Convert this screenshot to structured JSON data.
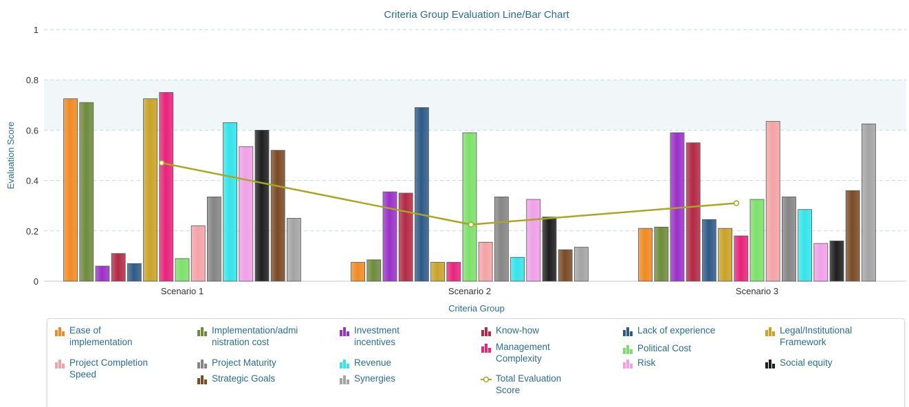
{
  "chart_data": {
    "type": "bar",
    "title": "Criteria Group Evaluation Line/Bar Chart",
    "xlabel": "Criteria Group",
    "ylabel": "Evaluation Score",
    "ylim": [
      0,
      1
    ],
    "yticks": [
      0,
      0.2,
      0.4,
      0.6,
      0.8,
      1
    ],
    "ytick_labels": [
      "0",
      "0.2",
      "0.4",
      "0.6",
      "0.8",
      "1"
    ],
    "grid": true,
    "legend_position": "bottom",
    "categories": [
      "Scenario 1",
      "Scenario 2",
      "Scenario 3"
    ],
    "series": [
      {
        "name": "Ease of implementation",
        "color": "#f08a24",
        "values": [
          0.725,
          0.075,
          0.21
        ]
      },
      {
        "name": "Implementation/administration cost",
        "color": "#6e8b3d",
        "values": [
          0.71,
          0.085,
          0.215
        ]
      },
      {
        "name": "Investment incentives",
        "color": "#9b30c8",
        "values": [
          0.06,
          0.355,
          0.59
        ]
      },
      {
        "name": "Know-how",
        "color": "#b22a44",
        "values": [
          0.11,
          0.35,
          0.55
        ]
      },
      {
        "name": "Lack of experience",
        "color": "#2e5a87",
        "values": [
          0.07,
          0.69,
          0.245
        ]
      },
      {
        "name": "Legal/Institutional Framework",
        "color": "#c9a227",
        "values": [
          0.725,
          0.075,
          0.21
        ]
      },
      {
        "name": "Management Complexity",
        "color": "#e8237c",
        "values": [
          0.75,
          0.075,
          0.18
        ]
      },
      {
        "name": "Political Cost",
        "color": "#7de06a",
        "values": [
          0.09,
          0.59,
          0.325
        ]
      },
      {
        "name": "Project Completion Speed",
        "color": "#f4a3a5",
        "values": [
          0.22,
          0.155,
          0.635
        ]
      },
      {
        "name": "Project Maturity",
        "color": "#858585",
        "values": [
          0.335,
          0.335,
          0.335
        ]
      },
      {
        "name": "Revenue",
        "color": "#33e4ea",
        "values": [
          0.63,
          0.095,
          0.285
        ]
      },
      {
        "name": "Risk",
        "color": "#f0a0e8",
        "values": [
          0.535,
          0.325,
          0.15
        ]
      },
      {
        "name": "Social equity",
        "color": "#1e1e1e",
        "values": [
          0.6,
          0.255,
          0.16
        ]
      },
      {
        "name": "Strategic Goals",
        "color": "#7a4a26",
        "values": [
          0.52,
          0.125,
          0.36
        ]
      },
      {
        "name": "Synergies",
        "color": "#a4a4a4",
        "values": [
          0.25,
          0.135,
          0.625
        ]
      }
    ],
    "line_series": {
      "name": "Total Evaluation Score",
      "color": "#a9a622",
      "values": [
        0.47,
        0.225,
        0.31
      ]
    }
  },
  "legend": {
    "items": [
      {
        "text": "Ease of\nimplementation",
        "color": "#f08a24",
        "kind": "bar"
      },
      {
        "text": "Implementation/admi\nnistration cost",
        "color": "#6e8b3d",
        "kind": "bar"
      },
      {
        "text": "Investment\nincentives",
        "color": "#9b30c8",
        "kind": "bar"
      },
      {
        "text": "Know-how",
        "color": "#b22a44",
        "kind": "bar"
      },
      {
        "text": "Lack of experience",
        "color": "#2e5a87",
        "kind": "bar"
      },
      {
        "text": "Legal/Institutional\nFramework",
        "color": "#c9a227",
        "kind": "bar"
      },
      {
        "text": "Management\nComplexity",
        "color": "#e8237c",
        "kind": "bar"
      },
      {
        "text": "Political Cost",
        "color": "#7de06a",
        "kind": "bar"
      },
      {
        "text": "Project Completion\nSpeed",
        "color": "#f4a3a5",
        "kind": "bar"
      },
      {
        "text": "Project Maturity",
        "color": "#858585",
        "kind": "bar"
      },
      {
        "text": "Revenue",
        "color": "#33e4ea",
        "kind": "bar"
      },
      {
        "text": "Risk",
        "color": "#f0a0e8",
        "kind": "bar"
      },
      {
        "text": "Social equity",
        "color": "#1e1e1e",
        "kind": "bar"
      },
      {
        "text": "Strategic Goals",
        "color": "#7a4a26",
        "kind": "bar"
      },
      {
        "text": "Synergies",
        "color": "#a4a4a4",
        "kind": "bar"
      },
      {
        "text": "Total Evaluation\nScore",
        "color": "#a9a622",
        "kind": "line"
      }
    ]
  }
}
